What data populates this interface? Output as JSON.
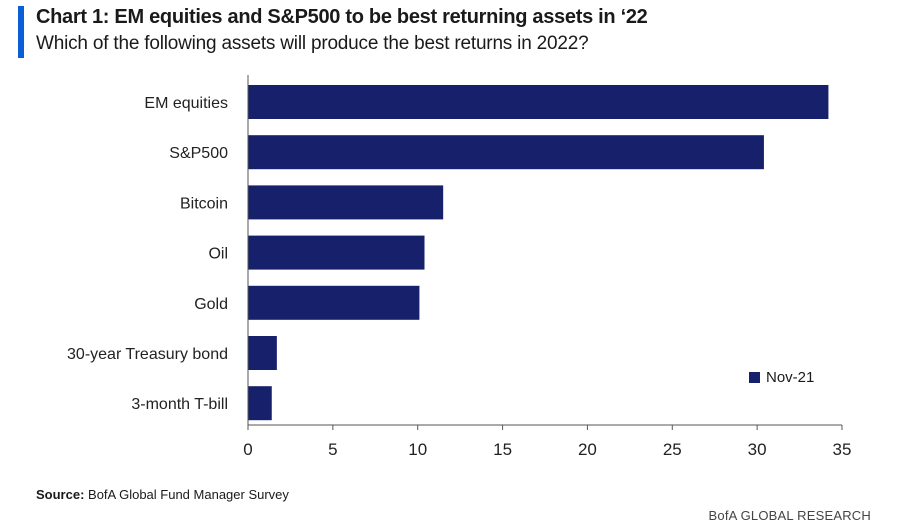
{
  "header": {
    "title": "Chart 1:  EM equities and S&P500 to be best returning assets in ‘22",
    "subtitle": "Which of the following assets will produce the best returns in 2022?"
  },
  "footer": {
    "source_label": "Source:",
    "source_text": " BofA Global Fund Manager Survey",
    "brand": "BofA GLOBAL RESEARCH"
  },
  "colors": {
    "bar": "#17216b",
    "accent": "#0a5fd6"
  },
  "chart_data": {
    "type": "bar",
    "orientation": "horizontal",
    "categories": [
      "EM equities",
      "S&P500",
      "Bitcoin",
      "Oil",
      "Gold",
      "30-year Treasury bond",
      "3-month T-bill"
    ],
    "series": [
      {
        "name": "Nov-21",
        "values": [
          34.2,
          30.4,
          11.5,
          10.4,
          10.1,
          1.7,
          1.4
        ]
      }
    ],
    "xlim": [
      0,
      35
    ],
    "xticks": [
      0,
      5,
      10,
      15,
      20,
      25,
      30,
      35
    ],
    "grid": false,
    "legend": "bottom-right"
  }
}
